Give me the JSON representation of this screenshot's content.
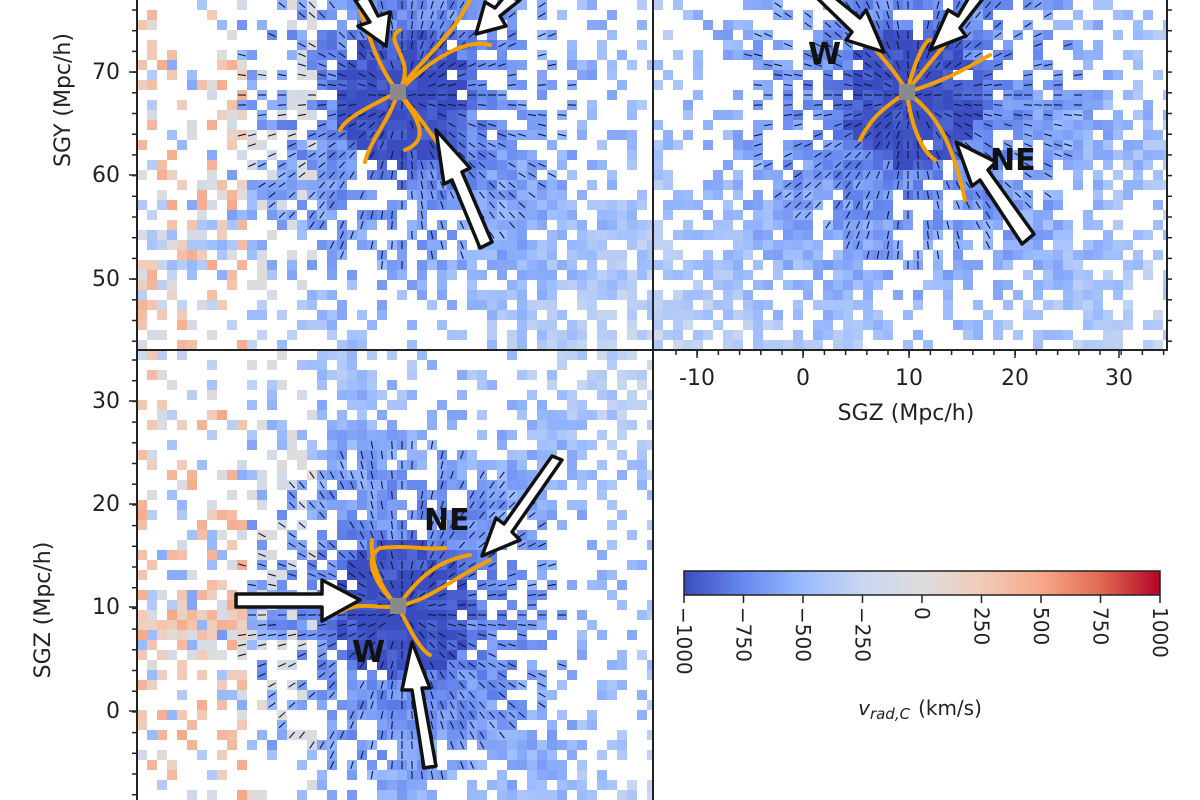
{
  "chart_data": [
    {
      "type": "heatmap",
      "panel": "top-left",
      "title": "",
      "xlabel": "",
      "ylabel": "SGY (Mpc/h)",
      "y_ticks": [
        70,
        60,
        50
      ],
      "ylim": [
        43,
        78
      ],
      "arrow_labels": [],
      "center": [
        0,
        68
      ],
      "colorbar_ref": "v_rad,C"
    },
    {
      "type": "heatmap",
      "panel": "top-right",
      "title": "",
      "xlabel": "SGZ (Mpc/h)",
      "ylabel": "",
      "x_ticks": [
        -10,
        0,
        10,
        20,
        30
      ],
      "xlim": [
        -13,
        35
      ],
      "ylim": [
        43,
        78
      ],
      "arrow_labels": [
        "W",
        "NE"
      ],
      "center": [
        10,
        68
      ]
    },
    {
      "type": "heatmap",
      "panel": "bottom-left",
      "title": "",
      "xlabel": "",
      "ylabel": "SGZ (Mpc/h)",
      "y_ticks": [
        30,
        20,
        10,
        0
      ],
      "ylim": [
        -8,
        35
      ],
      "arrow_labels": [
        "NE",
        "W"
      ],
      "center": [
        0,
        10
      ]
    }
  ],
  "colorbar": {
    "label": "v",
    "label_sub": "rad,C",
    "label_unit": "(km/s)",
    "ticks": [
      "−1000",
      "−750",
      "−500",
      "−250",
      "0",
      "250",
      "500",
      "750",
      "1000"
    ],
    "range": [
      -1000,
      1000
    ],
    "colors": [
      "#3a4cc0",
      "#6788ee",
      "#9abbff",
      "#c9d7f0",
      "#dddddd",
      "#f2cbb7",
      "#f7a889",
      "#e26952",
      "#b40426"
    ]
  },
  "colors": {
    "filament": "#f5a000",
    "arrow_fill": "#ffffff",
    "arrow_edge": "#111111"
  }
}
